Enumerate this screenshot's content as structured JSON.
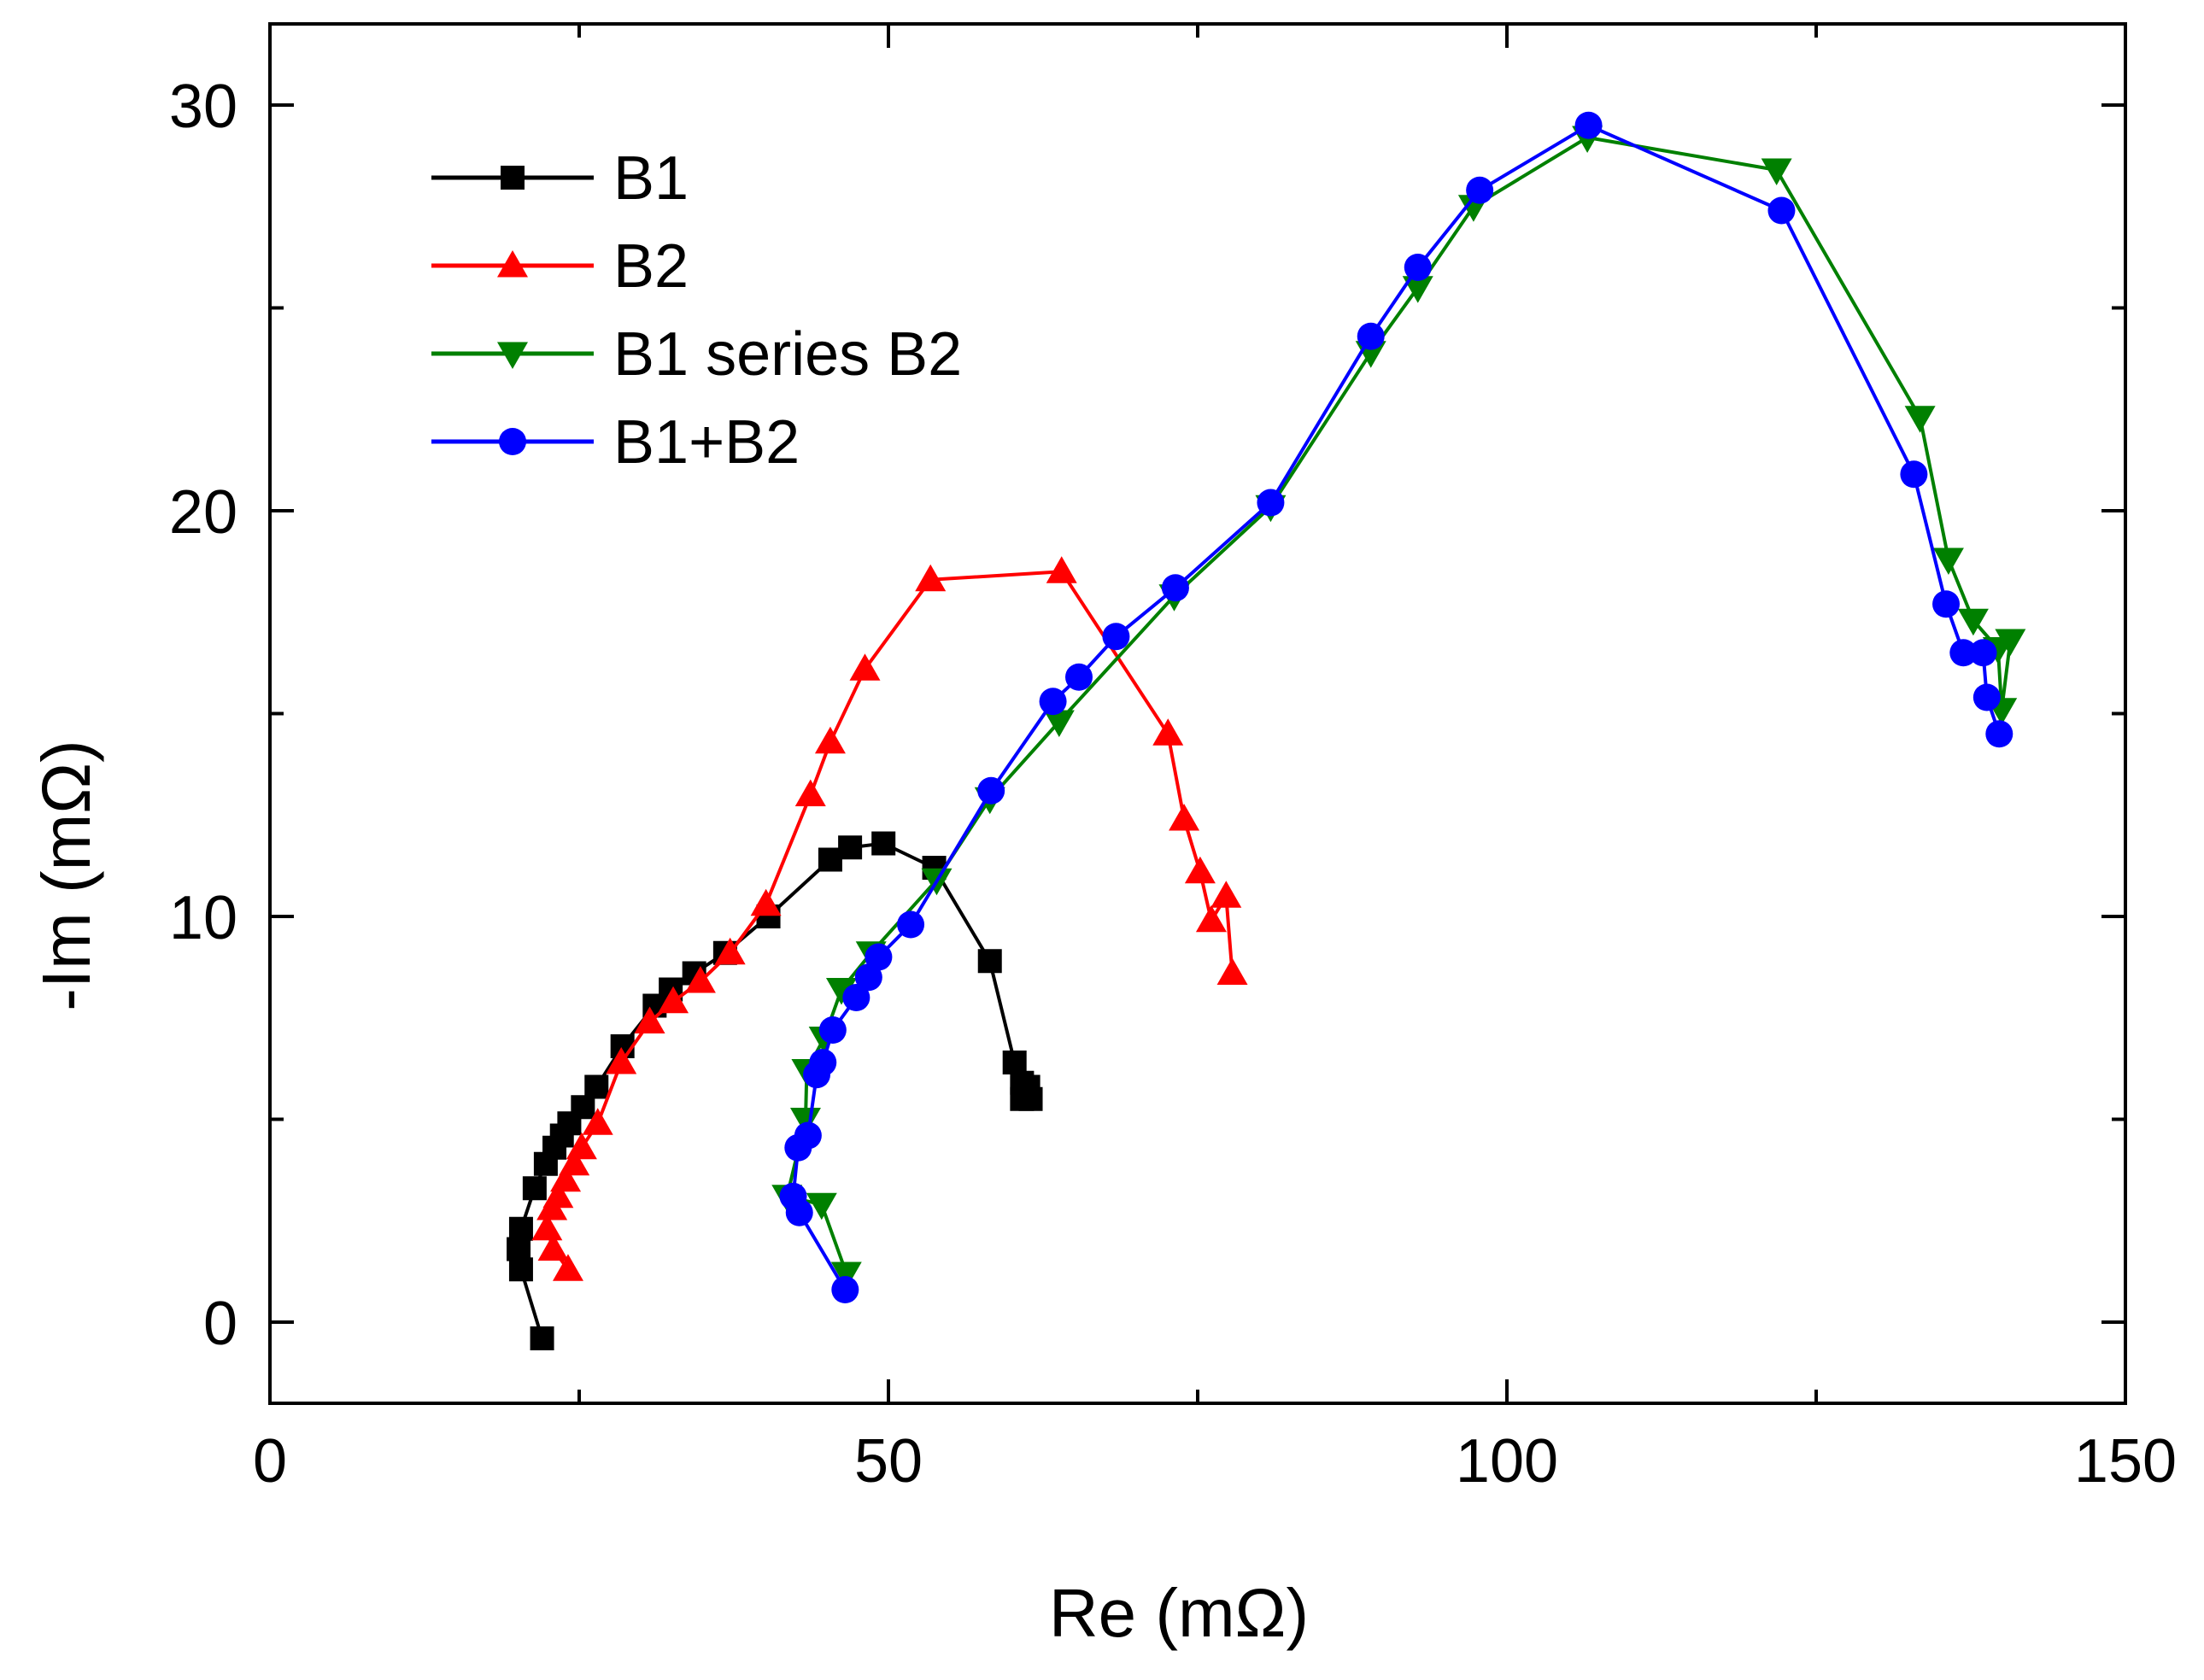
{
  "chart_data": {
    "type": "line",
    "title": "",
    "xlabel": "Re (mΩ)",
    "ylabel": "-Im (mΩ)",
    "xlim": [
      0,
      150
    ],
    "ylim": [
      -2,
      32
    ],
    "x_ticks": [
      0,
      50,
      100,
      150
    ],
    "y_ticks": [
      0,
      10,
      20,
      30
    ],
    "x_minor_step": 25,
    "y_minor_step": 5,
    "legend_position": "top-left",
    "grid": false,
    "series": [
      {
        "name": "B1",
        "color": "#000000",
        "marker": "square",
        "x": [
          22.0,
          20.3,
          20.1,
          20.3,
          21.4,
          22.3,
          23.0,
          23.6,
          24.2,
          25.3,
          26.4,
          28.5,
          31.1,
          32.4,
          34.3,
          36.8,
          40.3,
          45.3,
          46.9,
          49.6,
          53.7,
          58.2,
          60.2,
          60.8,
          61.3,
          61.5,
          60.8
        ],
        "y": [
          -0.4,
          1.3,
          1.8,
          2.3,
          3.3,
          3.9,
          4.3,
          4.6,
          4.9,
          5.3,
          5.8,
          6.8,
          7.8,
          8.2,
          8.6,
          9.1,
          10.0,
          11.4,
          11.7,
          11.8,
          11.2,
          8.9,
          6.4,
          5.9,
          5.8,
          5.5,
          5.5
        ]
      },
      {
        "name": "B2",
        "color": "#ff0000",
        "marker": "triangle-up",
        "x": [
          24.1,
          22.9,
          22.4,
          22.8,
          23.3,
          23.9,
          24.6,
          25.2,
          26.5,
          28.4,
          30.7,
          32.6,
          34.8,
          37.2,
          40.1,
          43.7,
          45.3,
          48.1,
          53.4,
          64.0,
          72.6,
          73.9,
          75.2,
          76.1,
          77.3,
          77.8
        ],
        "y": [
          1.3,
          1.8,
          2.3,
          2.8,
          3.1,
          3.5,
          3.9,
          4.3,
          4.9,
          6.4,
          7.4,
          7.9,
          8.4,
          9.1,
          10.3,
          13.0,
          14.3,
          16.1,
          18.3,
          18.5,
          14.5,
          12.4,
          11.1,
          9.9,
          10.5,
          8.6
        ]
      },
      {
        "name": "B1 series B2",
        "color": "#008000",
        "marker": "triangle-down",
        "x": [
          46.6,
          44.6,
          41.8,
          43.3,
          43.4,
          44.8,
          46.2,
          48.6,
          53.9,
          58.2,
          63.8,
          73.1,
          80.9,
          89.0,
          92.8,
          97.3,
          106.5,
          121.8,
          133.4,
          135.7,
          137.7,
          139.7,
          140.0,
          140.7
        ],
        "y": [
          1.2,
          2.9,
          3.1,
          5.0,
          6.2,
          7.0,
          8.2,
          9.1,
          10.9,
          12.9,
          14.8,
          17.9,
          20.1,
          23.9,
          25.5,
          27.5,
          29.2,
          28.4,
          22.3,
          18.8,
          17.3,
          16.6,
          15.1,
          16.8
        ]
      },
      {
        "name": "B1+B2",
        "color": "#0000ff",
        "marker": "circle",
        "x": [
          46.5,
          42.8,
          42.3,
          42.7,
          43.5,
          44.2,
          44.7,
          45.5,
          47.4,
          48.4,
          49.2,
          51.8,
          58.3,
          63.3,
          65.4,
          68.4,
          73.2,
          80.9,
          89.0,
          92.8,
          97.8,
          106.6,
          122.2,
          132.9,
          135.5,
          136.9,
          138.5,
          138.8,
          139.8
        ],
        "y": [
          0.8,
          2.7,
          3.1,
          4.3,
          4.6,
          6.1,
          6.4,
          7.2,
          8.0,
          8.5,
          9.0,
          9.8,
          13.1,
          15.3,
          15.9,
          16.9,
          18.1,
          20.2,
          24.3,
          26.0,
          27.9,
          29.5,
          27.4,
          20.9,
          17.7,
          16.5,
          16.5,
          15.4,
          14.5
        ]
      }
    ]
  }
}
